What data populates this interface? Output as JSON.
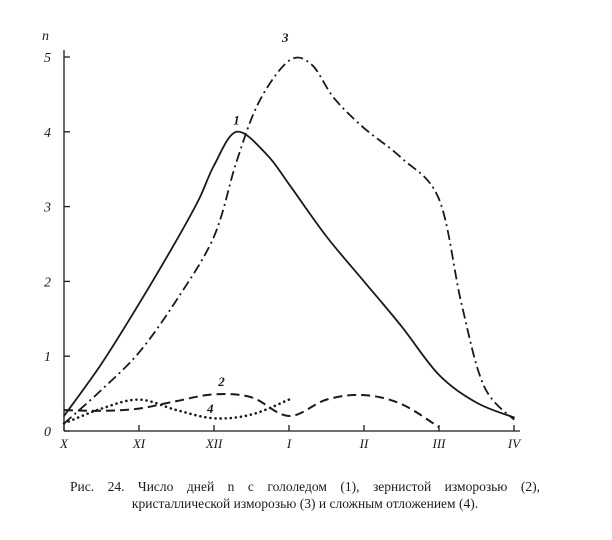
{
  "chart_data": {
    "type": "line",
    "ylabel": "n",
    "ylim": [
      0,
      5
    ],
    "yticks": [
      "0",
      "1",
      "2",
      "3",
      "4",
      "5"
    ],
    "categories": [
      "X",
      "XI",
      "XII",
      "I",
      "II",
      "III",
      "IV"
    ],
    "x_range": [
      0,
      6
    ],
    "series": [
      {
        "name": "1",
        "style": "solid",
        "x": [
          0,
          0.5,
          1,
          1.5,
          1.8,
          2,
          2.3,
          2.7,
          3,
          3.5,
          4,
          4.5,
          5,
          5.5,
          6
        ],
        "y": [
          0.2,
          0.9,
          1.7,
          2.55,
          3.1,
          3.55,
          4.0,
          3.7,
          3.3,
          2.6,
          2.0,
          1.4,
          0.75,
          0.38,
          0.18
        ]
      },
      {
        "name": "2",
        "style": "dashed",
        "x": [
          0,
          0.5,
          1,
          1.5,
          2,
          2.5,
          3,
          3.5,
          4,
          4.5,
          5
        ],
        "y": [
          0.28,
          0.27,
          0.3,
          0.4,
          0.49,
          0.45,
          0.2,
          0.42,
          0.48,
          0.36,
          0.05
        ]
      },
      {
        "name": "3",
        "style": "dashdot",
        "x": [
          0,
          0.5,
          1,
          1.5,
          2,
          2.3,
          2.6,
          3,
          3.3,
          3.6,
          4,
          4.5,
          5,
          5.3,
          5.6,
          6
        ],
        "y": [
          0.1,
          0.55,
          1.05,
          1.75,
          2.6,
          3.6,
          4.4,
          4.95,
          4.9,
          4.45,
          4.05,
          3.65,
          3.1,
          1.7,
          0.6,
          0.15
        ]
      },
      {
        "name": "4",
        "style": "dotted",
        "x": [
          0,
          0.5,
          1,
          1.5,
          2,
          2.5,
          3
        ],
        "y": [
          0.1,
          0.3,
          0.42,
          0.28,
          0.17,
          0.22,
          0.42
        ]
      }
    ],
    "series_labels": [
      {
        "name": "1",
        "text": "1",
        "x": 2.3,
        "y": 4.1
      },
      {
        "name": "2",
        "text": "2",
        "x": 2.1,
        "y": 0.6
      },
      {
        "name": "3",
        "text": "3",
        "x": 2.95,
        "y": 5.2
      },
      {
        "name": "4",
        "text": "4",
        "x": 1.95,
        "y": 0.24
      }
    ],
    "caption": "Рис. 24. Число дней n с гололедом (1), зернистой изморозью (2), кристаллической изморозью (3) и сложным отложением (4)."
  }
}
